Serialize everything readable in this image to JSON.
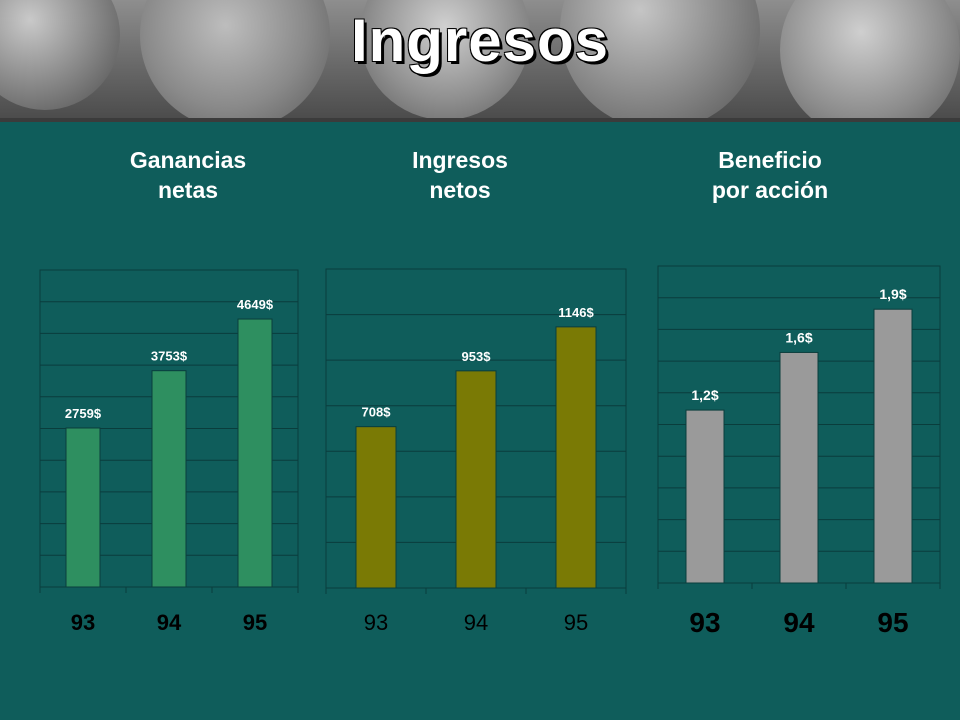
{
  "slide": {
    "title": "Ingresos"
  },
  "banner": {
    "image": "coins-photo"
  },
  "colors": {
    "background": "#0f5d5b",
    "panel1_bar": "#2e8f60",
    "panel2_bar": "#7a7a05",
    "panel3_bar": "#9a9a9a"
  },
  "chart_data": [
    {
      "type": "bar",
      "title_lines": [
        "Ganancias",
        "netas"
      ],
      "categories": [
        "93",
        "94",
        "95"
      ],
      "values": [
        2759,
        3753,
        4649
      ],
      "value_labels": [
        "2759$",
        "3753$",
        "4649$"
      ],
      "ylim": [
        0,
        5500
      ],
      "grid": true
    },
    {
      "type": "bar",
      "title_lines": [
        "Ingresos",
        "netos"
      ],
      "categories": [
        "93",
        "94",
        "95"
      ],
      "values": [
        708,
        953,
        1146
      ],
      "value_labels": [
        "708$",
        "953$",
        "1146$"
      ],
      "ylim": [
        0,
        1400
      ],
      "grid": true
    },
    {
      "type": "bar",
      "title_lines": [
        "Beneficio",
        "por acción"
      ],
      "categories": [
        "93",
        "94",
        "95"
      ],
      "values": [
        1.2,
        1.6,
        1.9
      ],
      "value_labels": [
        "1,2$",
        "1,6$",
        "1,9$"
      ],
      "ylim": [
        0,
        2.2
      ],
      "grid": true
    }
  ]
}
